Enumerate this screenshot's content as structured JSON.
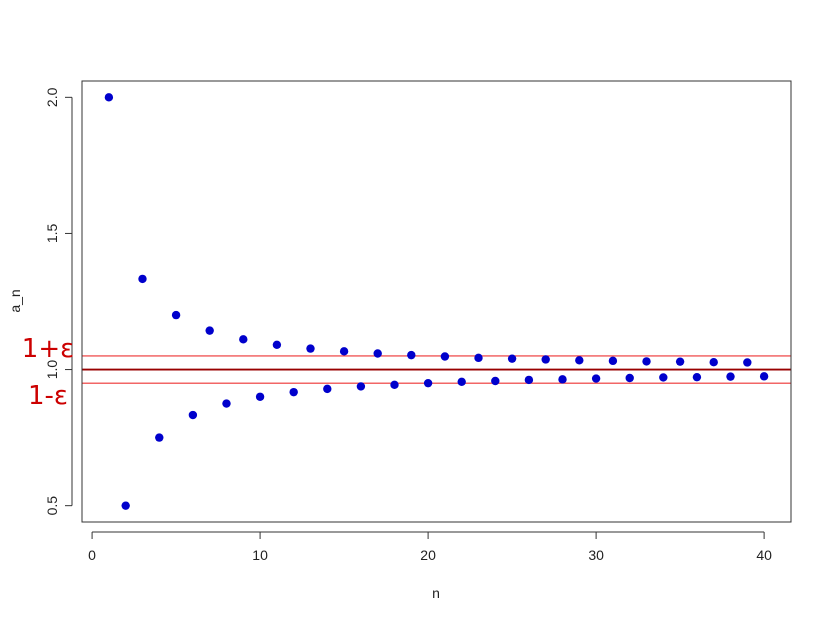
{
  "chart_data": {
    "type": "scatter",
    "title": "",
    "xlabel": "n",
    "ylabel": "a_n",
    "xlim": [
      -0.6,
      41.6
    ],
    "ylim": [
      0.44,
      2.06
    ],
    "xticks": [
      0,
      10,
      20,
      30,
      40
    ],
    "xtick_labels": [
      "0",
      "10",
      "20",
      "30",
      "40"
    ],
    "yticks": [
      0.5,
      1.0,
      1.5,
      2.0
    ],
    "ytick_labels": [
      "0.5",
      "1.0",
      "1.5",
      "2.0"
    ],
    "grid": false,
    "point_color": "#0000cc",
    "series": [
      {
        "x": [
          1,
          2,
          3,
          4,
          5,
          6,
          7,
          8,
          9,
          10,
          11,
          12,
          13,
          14,
          15,
          16,
          17,
          18,
          19,
          20,
          21,
          22,
          23,
          24,
          25,
          26,
          27,
          28,
          29,
          30,
          31,
          32,
          33,
          34,
          35,
          36,
          37,
          38,
          39,
          40
        ],
        "y": [
          2,
          0.5,
          1.333,
          0.75,
          1.2,
          0.833,
          1.143,
          0.875,
          1.111,
          0.9,
          1.091,
          0.917,
          1.077,
          0.929,
          1.067,
          0.938,
          1.059,
          0.944,
          1.053,
          0.95,
          1.048,
          0.955,
          1.043,
          0.958,
          1.04,
          0.962,
          1.037,
          0.964,
          1.034,
          0.967,
          1.032,
          0.969,
          1.03,
          0.971,
          1.029,
          0.972,
          1.027,
          0.974,
          1.026,
          0.975
        ]
      }
    ],
    "reference_lines": [
      {
        "y": 1.0,
        "color": "#990000"
      },
      {
        "y": 1.05,
        "color": "#ee3333"
      },
      {
        "y": 0.95,
        "color": "#ee3333"
      }
    ],
    "annotations": [
      {
        "text": "1+ε",
        "y": 1.05,
        "color": "#cc0000"
      },
      {
        "text": "1-ε",
        "y": 0.95,
        "color": "#cc0000"
      }
    ]
  }
}
